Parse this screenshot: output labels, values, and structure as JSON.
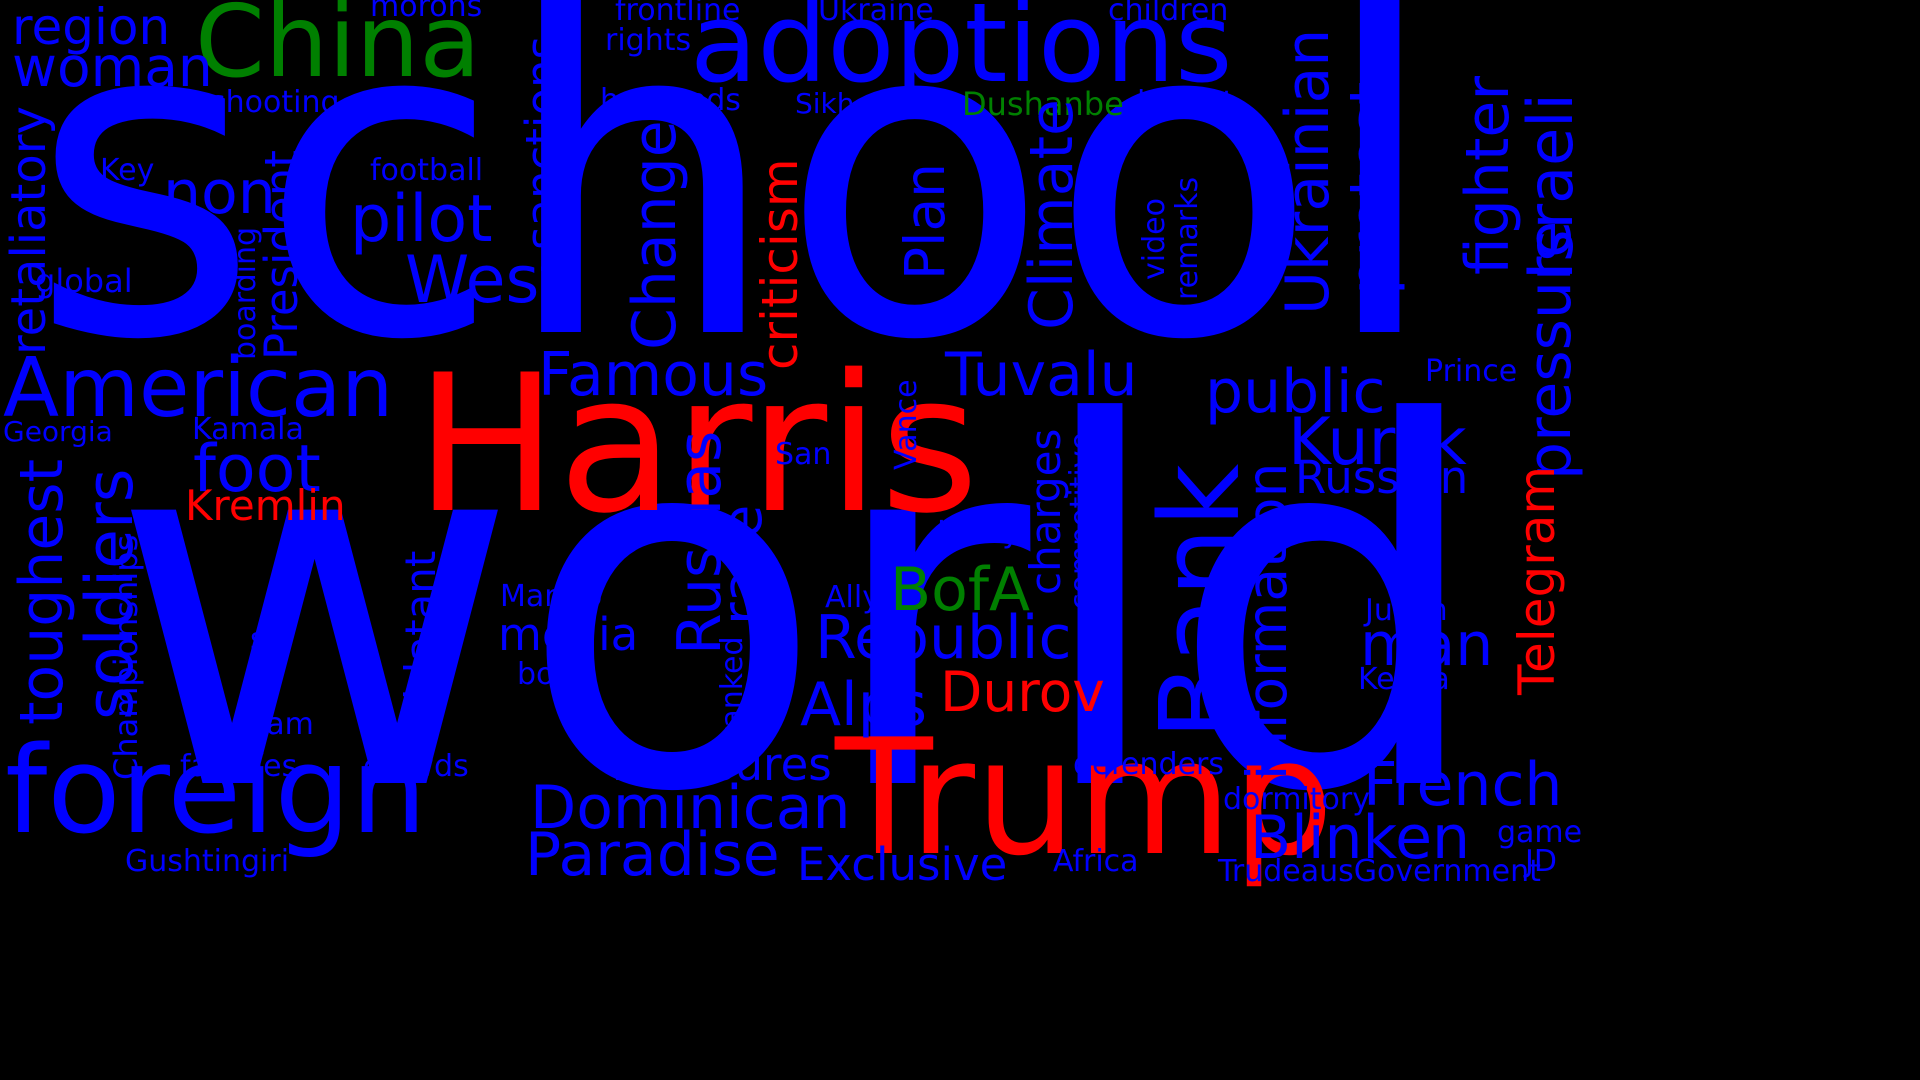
{
  "colors": {
    "background": "#000000",
    "blue": "#0000ff",
    "red": "#ff0000",
    "green": "#008000"
  },
  "words": [
    {
      "text": "school",
      "color": "blue"
    },
    {
      "text": "world",
      "color": "blue"
    },
    {
      "text": "Harris",
      "color": "red"
    },
    {
      "text": "Trump",
      "color": "red"
    },
    {
      "text": "adoptions",
      "color": "blue"
    },
    {
      "text": "China",
      "color": "green"
    },
    {
      "text": "foreign",
      "color": "blue"
    },
    {
      "text": "Bank",
      "color": "blue"
    },
    {
      "text": "American",
      "color": "blue"
    },
    {
      "text": "region",
      "color": "blue"
    },
    {
      "text": "woman",
      "color": "blue"
    },
    {
      "text": "morons",
      "color": "blue"
    },
    {
      "text": "frontline",
      "color": "blue"
    },
    {
      "text": "rights",
      "color": "blue"
    },
    {
      "text": "Ukraine",
      "color": "blue"
    },
    {
      "text": "children",
      "color": "blue"
    },
    {
      "text": "shooting",
      "color": "blue"
    },
    {
      "text": "hundreds",
      "color": "blue"
    },
    {
      "text": "Sikh",
      "color": "blue"
    },
    {
      "text": "Dushanbe",
      "color": "green"
    },
    {
      "text": "lowest",
      "color": "blue"
    },
    {
      "text": "Key",
      "color": "blue"
    },
    {
      "text": "football",
      "color": "blue"
    },
    {
      "text": "non",
      "color": "blue"
    },
    {
      "text": "pilot",
      "color": "blue"
    },
    {
      "text": "global",
      "color": "blue"
    },
    {
      "text": "West",
      "color": "blue"
    },
    {
      "text": "Famous",
      "color": "blue"
    },
    {
      "text": "Tuvalu",
      "color": "blue"
    },
    {
      "text": "public",
      "color": "blue"
    },
    {
      "text": "Prince",
      "color": "blue"
    },
    {
      "text": "Georgia",
      "color": "blue"
    },
    {
      "text": "Kamala",
      "color": "blue"
    },
    {
      "text": "foot",
      "color": "blue"
    },
    {
      "text": "Kremlin",
      "color": "red"
    },
    {
      "text": "San",
      "color": "blue"
    },
    {
      "text": "Kursk",
      "color": "blue"
    },
    {
      "text": "Russian",
      "color": "blue"
    },
    {
      "text": "Harry",
      "color": "blue"
    },
    {
      "text": "BofA",
      "color": "green"
    },
    {
      "text": "Marino",
      "color": "blue"
    },
    {
      "text": "Ally",
      "color": "blue"
    },
    {
      "text": "Justin",
      "color": "blue"
    },
    {
      "text": "media",
      "color": "blue"
    },
    {
      "text": "Republic",
      "color": "blue"
    },
    {
      "text": "man",
      "color": "blue"
    },
    {
      "text": "boys",
      "color": "blue"
    },
    {
      "text": "Kenya",
      "color": "blue"
    },
    {
      "text": "Alps",
      "color": "blue"
    },
    {
      "text": "Durov",
      "color": "red"
    },
    {
      "text": "s",
      "color": "blue"
    },
    {
      "text": "team",
      "color": "blue"
    },
    {
      "text": "families",
      "color": "blue"
    },
    {
      "text": "crowds",
      "color": "blue"
    },
    {
      "text": "measures",
      "color": "blue"
    },
    {
      "text": "defenders",
      "color": "blue"
    },
    {
      "text": "dormitory",
      "color": "blue"
    },
    {
      "text": "French",
      "color": "blue"
    },
    {
      "text": "Dominican",
      "color": "blue"
    },
    {
      "text": "Blinken",
      "color": "blue"
    },
    {
      "text": "game",
      "color": "blue"
    },
    {
      "text": "Paradise",
      "color": "blue"
    },
    {
      "text": "Gushtingiri",
      "color": "blue"
    },
    {
      "text": "Exclusive",
      "color": "blue"
    },
    {
      "text": "Africa",
      "color": "blue"
    },
    {
      "text": "JD",
      "color": "blue"
    },
    {
      "text": "TrudeausGovernment",
      "color": "blue"
    },
    {
      "text": "retaliatory",
      "color": "blue"
    },
    {
      "text": "toughest",
      "color": "blue"
    },
    {
      "text": "soldiers",
      "color": "blue"
    },
    {
      "text": "Championships",
      "color": "blue"
    },
    {
      "text": "boarding",
      "color": "blue"
    },
    {
      "text": "President",
      "color": "blue"
    },
    {
      "text": "sanctions",
      "color": "blue"
    },
    {
      "text": "Change",
      "color": "blue"
    },
    {
      "text": "criticism",
      "color": "red"
    },
    {
      "text": "Plan",
      "color": "blue"
    },
    {
      "text": "Climate",
      "color": "blue"
    },
    {
      "text": "video",
      "color": "blue"
    },
    {
      "text": "remarks",
      "color": "blue"
    },
    {
      "text": "Ukrainian",
      "color": "blue"
    },
    {
      "text": "protest",
      "color": "blue"
    },
    {
      "text": "fighter",
      "color": "blue"
    },
    {
      "text": "Israeli",
      "color": "blue"
    },
    {
      "text": "pressure",
      "color": "blue"
    },
    {
      "text": "Telegram",
      "color": "red"
    },
    {
      "text": "information",
      "color": "blue"
    },
    {
      "text": "charges",
      "color": "blue"
    },
    {
      "text": "competitive",
      "color": "blue"
    },
    {
      "text": "Vance",
      "color": "blue"
    },
    {
      "text": "Russias",
      "color": "blue"
    },
    {
      "text": "race",
      "color": "blue"
    },
    {
      "text": "ranked",
      "color": "blue"
    },
    {
      "text": "blatant",
      "color": "blue"
    }
  ]
}
